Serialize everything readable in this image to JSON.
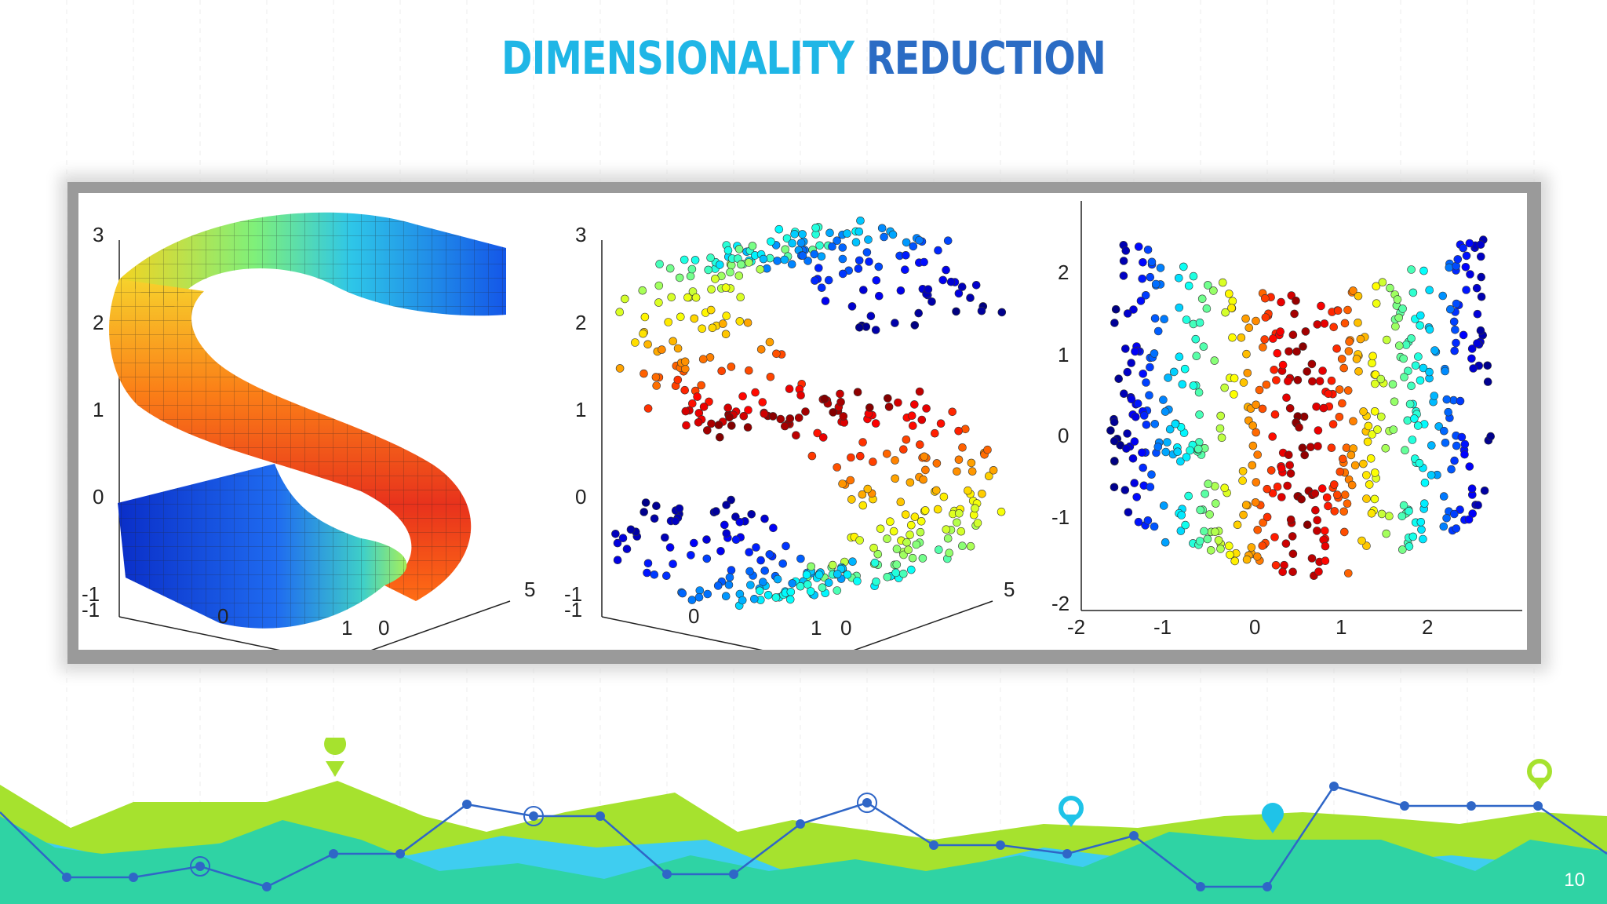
{
  "slide": {
    "title_part1": "DIMENSIONALITY",
    "title_part2": "REDUCTION",
    "page_number": "10"
  },
  "colors": {
    "title_light": "#1fb6e6",
    "title_dark": "#2b6cc4",
    "footer_lime": "#a6e22e",
    "footer_teal": "#2fd3a4",
    "footer_sky": "#3fcdf0",
    "footer_line": "#2f66c7"
  },
  "plots": [
    {
      "name": "s-curve-surface",
      "type": "3d-surface",
      "ticks_z": [
        "3",
        "2",
        "1",
        "0",
        "-1",
        "-1"
      ],
      "ticks_x": [
        "0",
        "1"
      ],
      "ticks_y": [
        "5",
        "0"
      ]
    },
    {
      "name": "s-curve-scatter",
      "type": "3d-scatter",
      "ticks_z": [
        "3",
        "2",
        "1",
        "0",
        "-1",
        "-1"
      ],
      "ticks_x": [
        "0",
        "1"
      ],
      "ticks_y": [
        "5",
        "0"
      ]
    },
    {
      "name": "embedding-scatter",
      "type": "2d-scatter",
      "ticks_y": [
        "2",
        "1",
        "0",
        "-1",
        "-2"
      ],
      "ticks_x": [
        "-2",
        "-1",
        "0",
        "1",
        "2"
      ]
    }
  ]
}
